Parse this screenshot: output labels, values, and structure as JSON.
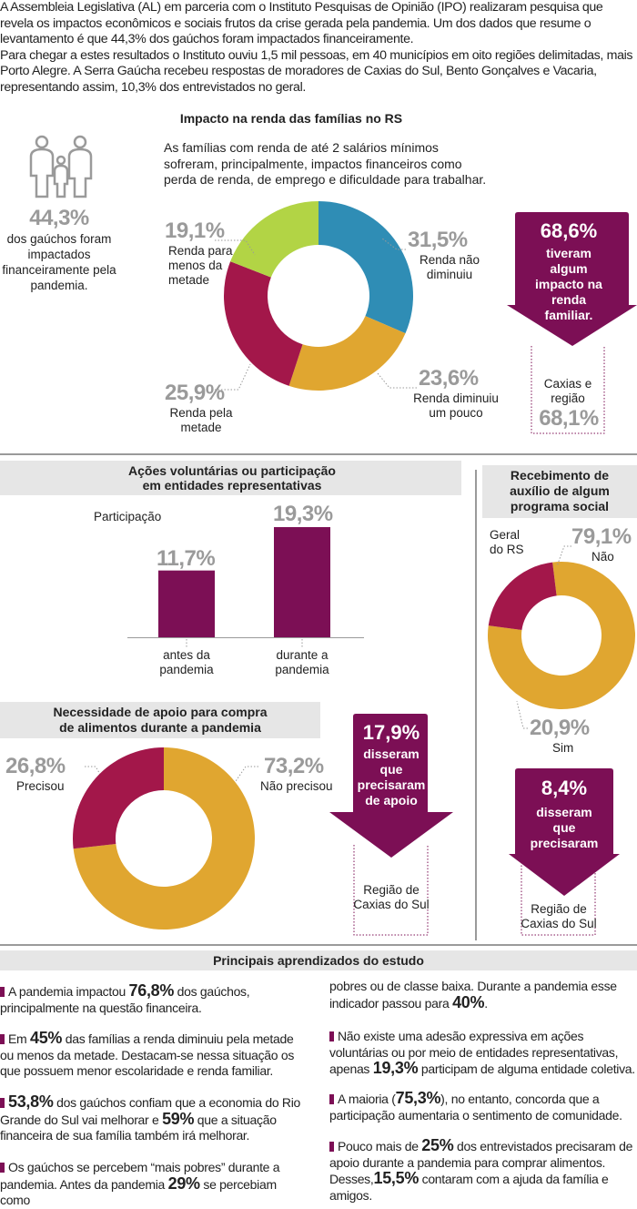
{
  "intro": {
    "p1": "A Assembleia Legislativa (AL) em parceria com o Instituto Pesquisas de Opinião (IPO) realizaram pesquisa que revela os impactos econômicos e sociais frutos da crise gerada pela pandemia. Um dos dados que resume o levantamento é que 44,3% dos gaúchos foram impactados financeiramente.",
    "p2": "Para chegar a estes resultados o Instituto ouviu 1,5 mil pessoas, em 40 municípios em oito regiões delimitadas, mais Porto Alegre. A Serra Gaúcha recebeu respostas de moradores de Caxias do Sul, Bento Gonçalves e Vacaria, representando assim, 10,3% dos entrevistados no geral."
  },
  "renda": {
    "title": "Impacto na renda das famílias no RS",
    "subtitle": "As famílias com renda de até 2 salários mínimos sofreram, principalmente, impactos financeiros como perda de renda, de emprego e dificuldade para trabalhar.",
    "side_value": "44,3%",
    "side_text": "dos gaúchos foram impactados financeiramente pela pandemia.",
    "arrow_value": "68,6%",
    "arrow_text": "tiveram algum impacto na renda familiar.",
    "region_label": "Caxias e região",
    "region_value": "68,1%"
  },
  "voluntarias": {
    "title_line1": "Ações voluntárias ou participação",
    "title_line2": "em entidades representativas",
    "series_label": "Participação"
  },
  "auxilio": {
    "title_line1": "Recebimento de",
    "title_line2": "auxílio de algum",
    "title_line3": "programa social",
    "geral_label_1": "Geral",
    "geral_label_2": "do RS",
    "arrow_value": "8,4%",
    "arrow_line1": "disseram",
    "arrow_line2": "que",
    "arrow_line3": "precisaram",
    "region_line1": "Região de",
    "region_line2": "Caxias do Sul"
  },
  "alimentos": {
    "title_line1": "Necessidade de apoio para compra",
    "title_line2": "de alimentos durante a pandemia",
    "arrow_value": "17,9%",
    "arrow_line1": "disseram",
    "arrow_line2": "que",
    "arrow_line3": "precisaram",
    "arrow_line4": "de apoio",
    "region_line1": "Região de",
    "region_line2": "Caxias do Sul"
  },
  "aprendizados": {
    "title": "Principais aprendizados do estudo",
    "b1_pre": "A pandemia impactou ",
    "b1_num": "76,8%",
    "b1_post": " dos gaúchos, principalmente na questão financeira.",
    "b2_pre": "Em ",
    "b2_num": "45%",
    "b2_post": " das famílias a renda diminuiu pela metade ou menos da metade. Destacam-se nessa situação os que possuem menor escolaridade e renda familiar.",
    "b3_num1": "53,8%",
    "b3_mid": " dos gaúchos confiam que a economia do Rio Grande do Sul vai melhorar e ",
    "b3_num2": "59%",
    "b3_post": " que a situação financeira de sua família também irá melhorar.",
    "b4_pre": "Os gaúchos se percebem “mais pobres” durante a pandemia. Antes da pandemia ",
    "b4_num": "29%",
    "b4_post": " se percebiam como",
    "b5_pre": "pobres ou de classe baixa. Durante a pandemia esse indicador passou para ",
    "b5_num": "40%",
    "b5_post": ".",
    "b6_pre": "Não existe uma adesão expressiva em ações voluntárias ou por meio de entidades representativas, apenas ",
    "b6_num": "19,3%",
    "b6_post": " participam de alguma entidade coletiva.",
    "b7_pre": "A maioria (",
    "b7_num": "75,3%",
    "b7_post": "), no entanto, concorda que a participação aumentaria o sentimento de comunidade.",
    "b8_pre": "Pouco mais de ",
    "b8_num": "25%",
    "b8_mid": " dos entrevistados precisaram de apoio durante a pandemia para comprar alimentos. Desses,",
    "b8_num2": "15,5%",
    "b8_post": " contaram com a ajuda da família e amigos."
  },
  "colors": {
    "blue": "#2f8db5",
    "gold": "#e0a630",
    "crimson": "#a3174a",
    "lime": "#b2d445",
    "purple": "#7c0f55",
    "gray": "#9a9a9a"
  },
  "chart_data": [
    {
      "type": "pie",
      "title": "Impacto na renda das famílias no RS",
      "slices": [
        {
          "label_lines": [
            "Renda não",
            "diminuiu"
          ],
          "value": 31.5,
          "display": "31,5%"
        },
        {
          "label_lines": [
            "Renda diminuiu",
            "um pouco"
          ],
          "value": 23.6,
          "display": "23,6%"
        },
        {
          "label_lines": [
            "Renda pela",
            "metade"
          ],
          "value": 25.9,
          "display": "25,9%"
        },
        {
          "label_lines": [
            "Renda para",
            "menos da",
            "metade"
          ],
          "value": 19.1,
          "display": "19,1%"
        }
      ]
    },
    {
      "type": "bar",
      "title": "Ações voluntárias ou participação em entidades representativas",
      "ylabel": "Participação",
      "categories": [
        [
          "antes da",
          "pandemia"
        ],
        [
          "durante a",
          "pandemia"
        ]
      ],
      "values": [
        11.7,
        19.3
      ],
      "displays": [
        "11,7%",
        "19,3%"
      ]
    },
    {
      "type": "pie",
      "title": "Recebimento de auxílio de algum programa social",
      "slices": [
        {
          "label": "Não",
          "value": 79.1,
          "display": "79,1%"
        },
        {
          "label": "Sim",
          "value": 20.9,
          "display": "20,9%"
        }
      ]
    },
    {
      "type": "pie",
      "title": "Necessidade de apoio para compra de alimentos durante a pandemia",
      "slices": [
        {
          "label": "Não precisou",
          "value": 73.2,
          "display": "73,2%"
        },
        {
          "label": "Precisou",
          "value": 26.8,
          "display": "26,8%"
        }
      ]
    }
  ]
}
